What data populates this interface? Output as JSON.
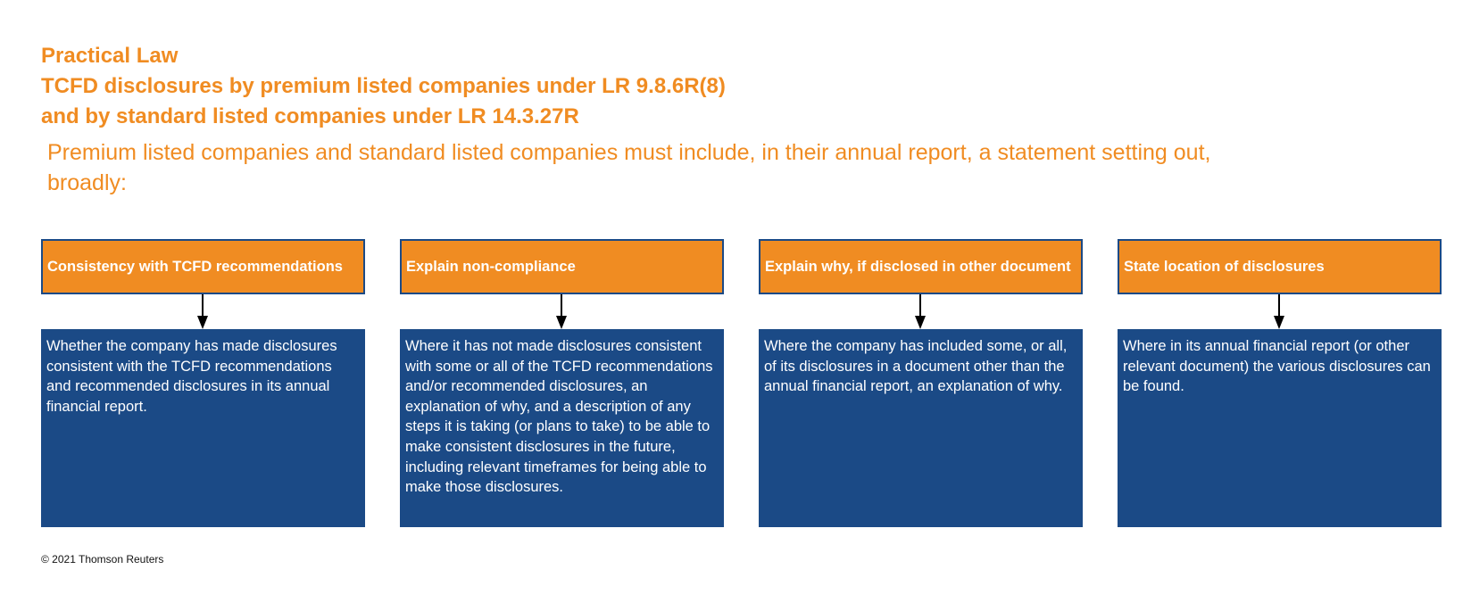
{
  "header": {
    "line1": "Practical Law",
    "line2": "TCFD disclosures by premium listed companies under LR 9.8.6R(8)",
    "line3": "and by standard listed companies under LR 14.3.27R"
  },
  "intro": "Premium listed companies and standard listed companies must include, in their annual report, a statement setting out, broadly:",
  "columns": [
    {
      "title": "Consistency with TCFD recommendations",
      "body": "Whether the company has made disclosures consistent with the TCFD recommendations and recommended disclosures in its annual financial report."
    },
    {
      "title": "Explain non-compliance",
      "body": "Where it has not made disclosures consistent with some or all of the TCFD recommendations and/or recommended disclosures, an explanation of why, and a description of any steps it is taking (or plans to take) to be able to make consistent disclosures in the future, including relevant timeframes for being able to make those disclosures."
    },
    {
      "title": "Explain why, if disclosed in other document",
      "body": "Where the company has included some, or all, of its disclosures in a document other than the annual financial report, an explanation of why."
    },
    {
      "title": "State location of disclosures",
      "body": " Where in its annual financial report (or other relevant document) the various disclosures can be found."
    }
  ],
  "footer": "© 2021 Thomson Reuters",
  "colors": {
    "accent_orange": "#f08c22",
    "box_blue": "#1b4a86",
    "text_white": "#ffffff"
  }
}
